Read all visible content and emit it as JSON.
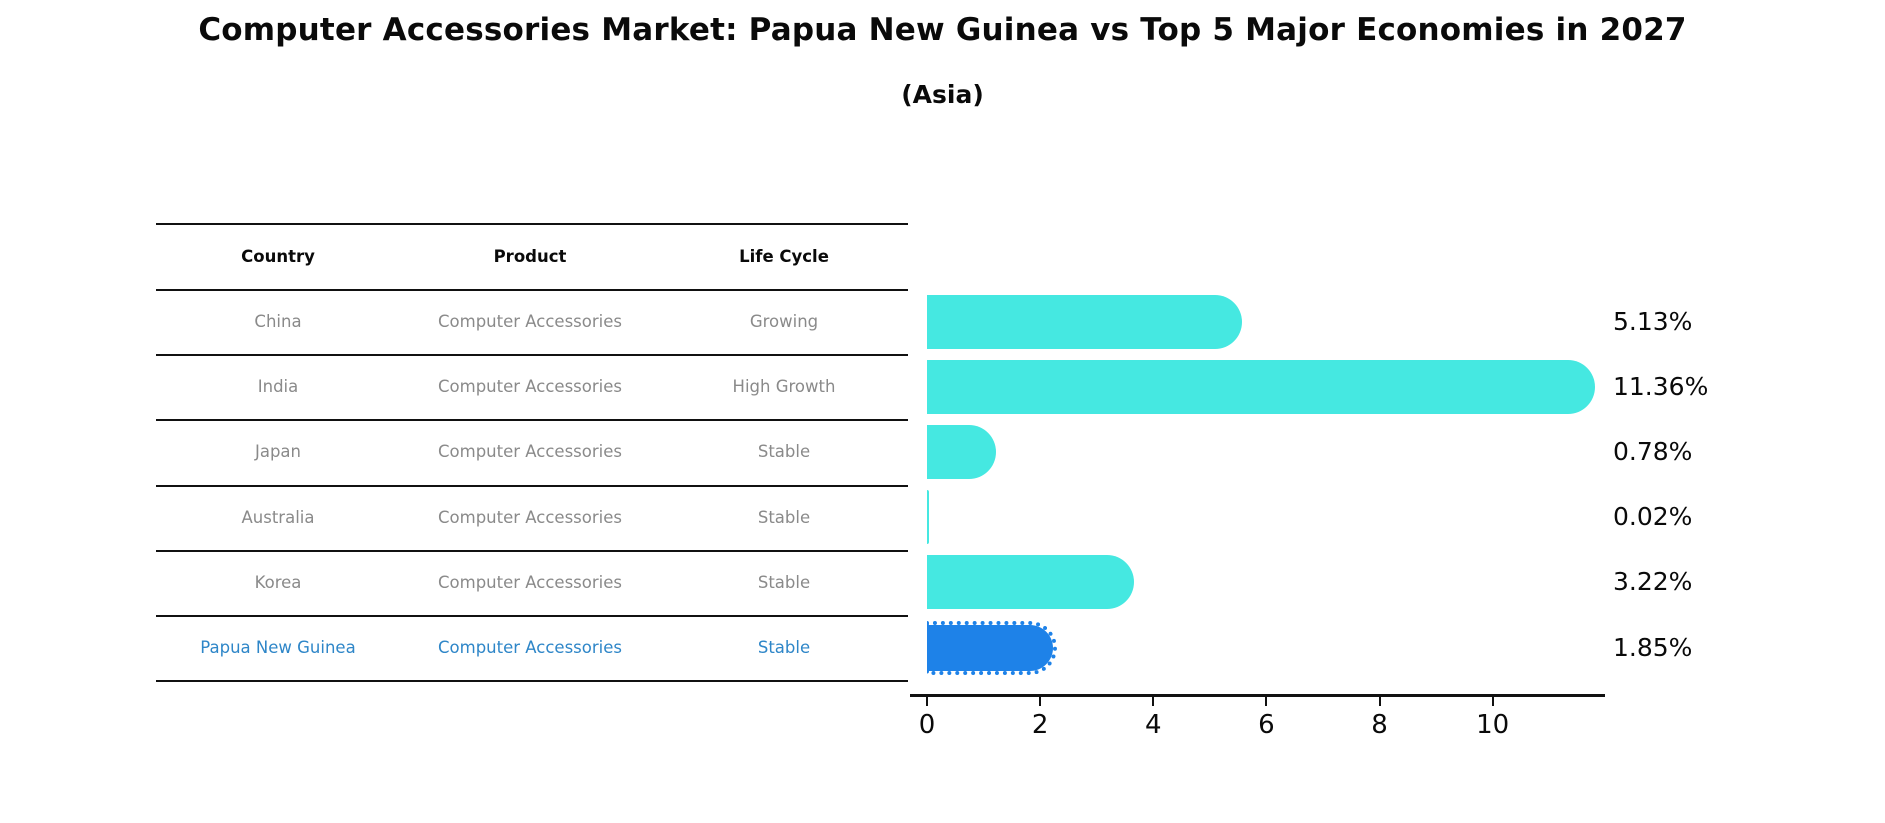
{
  "header": {
    "title": "Computer Accessories Market: Papua New Guinea vs Top 5 Major Economies in 2027",
    "subtitle": "(Asia)"
  },
  "table": {
    "headers": [
      "Country",
      "Product",
      "Life Cycle"
    ],
    "rows": [
      {
        "country": "China",
        "product": "Computer Accessories",
        "life_cycle": "Growing",
        "highlight": false
      },
      {
        "country": "India",
        "product": "Computer Accessories",
        "life_cycle": "High Growth",
        "highlight": false
      },
      {
        "country": "Japan",
        "product": "Computer Accessories",
        "life_cycle": "Stable",
        "highlight": false
      },
      {
        "country": "Australia",
        "product": "Computer Accessories",
        "life_cycle": "Stable",
        "highlight": false
      },
      {
        "country": "Korea",
        "product": "Computer Accessories",
        "life_cycle": "Stable",
        "highlight": false
      },
      {
        "country": "Papua New Guinea",
        "product": "Computer Accessories",
        "life_cycle": "Stable",
        "highlight": true
      }
    ]
  },
  "chart_data": {
    "type": "bar",
    "orientation": "horizontal",
    "title": "Computer Accessories Market: Papua New Guinea vs Top 5 Major Economies in 2027 (Asia)",
    "categories": [
      "China",
      "India",
      "Japan",
      "Australia",
      "Korea",
      "Papua New Guinea"
    ],
    "values": [
      5.13,
      11.36,
      0.78,
      0.02,
      3.22,
      1.85
    ],
    "value_labels": [
      "5.13%",
      "11.36%",
      "0.78%",
      "0.02%",
      "3.22%",
      "1.85%"
    ],
    "xlabel": "",
    "ylabel": "",
    "xlim": [
      0,
      12
    ],
    "xticks": [
      0,
      2,
      4,
      6,
      8,
      10
    ],
    "grid": false,
    "legend": "none",
    "highlight_index": 5
  },
  "colors": {
    "bar_cyan": "#45e8e1",
    "bar_blue": "#1e82e8",
    "highlight_text": "#2e86c8",
    "table_text": "#8a8a8a",
    "axis_black": "#111111"
  }
}
